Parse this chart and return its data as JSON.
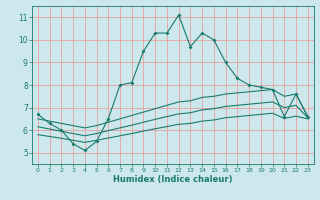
{
  "xlabel": "Humidex (Indice chaleur)",
  "background_color": "#cce8ec",
  "grid_color": "#e8a0a0",
  "line_color": "#1a7a6e",
  "xlim": [
    -0.5,
    23.5
  ],
  "ylim": [
    4.5,
    11.5
  ],
  "xticks": [
    0,
    1,
    2,
    3,
    4,
    5,
    6,
    7,
    8,
    9,
    10,
    11,
    12,
    13,
    14,
    15,
    16,
    17,
    18,
    19,
    20,
    21,
    22,
    23
  ],
  "yticks": [
    5,
    6,
    7,
    8,
    9,
    10,
    11
  ],
  "line1_x": [
    0,
    1,
    2,
    3,
    4,
    5,
    6,
    7,
    8,
    9,
    10,
    11,
    12,
    13,
    14,
    15,
    16,
    17,
    18,
    19,
    20,
    21,
    22,
    23
  ],
  "line1_y": [
    6.7,
    6.3,
    6.0,
    5.4,
    5.1,
    5.5,
    6.5,
    8.0,
    8.1,
    9.5,
    10.3,
    10.3,
    11.1,
    9.7,
    10.3,
    10.0,
    9.0,
    8.3,
    8.0,
    7.9,
    7.8,
    6.6,
    7.6,
    6.6
  ],
  "line2_x": [
    0,
    1,
    2,
    3,
    4,
    5,
    6,
    7,
    8,
    9,
    10,
    11,
    12,
    13,
    14,
    15,
    16,
    17,
    18,
    19,
    20,
    21,
    22,
    23
  ],
  "line2_y": [
    6.5,
    6.4,
    6.3,
    6.2,
    6.1,
    6.2,
    6.35,
    6.5,
    6.65,
    6.8,
    6.95,
    7.1,
    7.25,
    7.3,
    7.45,
    7.5,
    7.6,
    7.65,
    7.7,
    7.75,
    7.8,
    7.5,
    7.6,
    6.6
  ],
  "line3_x": [
    0,
    1,
    2,
    3,
    4,
    5,
    6,
    7,
    8,
    9,
    10,
    11,
    12,
    13,
    14,
    15,
    16,
    17,
    18,
    19,
    20,
    21,
    22,
    23
  ],
  "line3_y": [
    6.15,
    6.05,
    5.95,
    5.85,
    5.75,
    5.85,
    5.98,
    6.1,
    6.22,
    6.35,
    6.48,
    6.6,
    6.72,
    6.77,
    6.9,
    6.95,
    7.05,
    7.1,
    7.15,
    7.2,
    7.25,
    7.0,
    7.1,
    6.55
  ],
  "line4_x": [
    0,
    1,
    2,
    3,
    4,
    5,
    6,
    7,
    8,
    9,
    10,
    11,
    12,
    13,
    14,
    15,
    16,
    17,
    18,
    19,
    20,
    21,
    22,
    23
  ],
  "line4_y": [
    5.8,
    5.72,
    5.64,
    5.55,
    5.46,
    5.55,
    5.65,
    5.75,
    5.85,
    5.96,
    6.06,
    6.16,
    6.26,
    6.3,
    6.4,
    6.45,
    6.55,
    6.6,
    6.65,
    6.7,
    6.75,
    6.52,
    6.62,
    6.5
  ]
}
